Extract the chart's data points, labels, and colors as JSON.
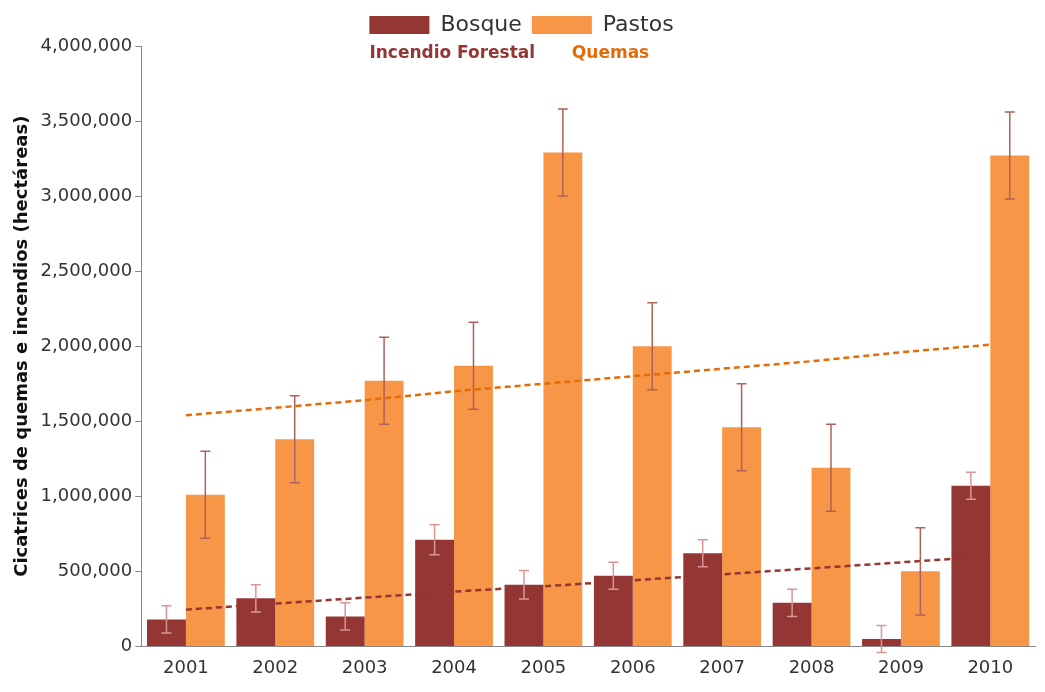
{
  "chart_data": {
    "type": "bar",
    "ylabel": "Cicatrices de quemas e incendios (hectáreas)",
    "categories": [
      "2001",
      "2002",
      "2003",
      "2004",
      "2005",
      "2006",
      "2007",
      "2008",
      "2009",
      "2010"
    ],
    "series": [
      {
        "name": "Bosque",
        "color": "#943634",
        "values": [
          180000,
          320000,
          200000,
          710000,
          410000,
          470000,
          620000,
          290000,
          50000,
          1070000
        ],
        "errors": [
          90000,
          90000,
          90000,
          100000,
          95000,
          90000,
          90000,
          90000,
          90000,
          90000
        ]
      },
      {
        "name": "Pastos",
        "color": "#f79646",
        "values": [
          1010000,
          1380000,
          1770000,
          1870000,
          3290000,
          2000000,
          1460000,
          1190000,
          500000,
          3270000
        ],
        "errors": [
          290000,
          290000,
          290000,
          290000,
          290000,
          290000,
          290000,
          290000,
          290000,
          290000
        ]
      },
      {
        "type": "line",
        "color": "#e36c09",
        "values": [
          1540000,
          1590000,
          1640000,
          1700000,
          1750000,
          1800000,
          1850000,
          1900000,
          1960000,
          2010000
        ],
        "line_style": "dashed",
        "marker": "none"
      },
      {
        "type": "line",
        "color": "#943634",
        "values": [
          245000,
          285000,
          325000,
          365000,
          400000,
          440000,
          480000,
          520000,
          560000,
          600000
        ],
        "line_style": "dashed",
        "marker": "none"
      }
    ],
    "annotations": [
      "Incendio Forestal",
      "Quemas"
    ],
    "ylim": [
      0,
      4000000
    ],
    "yticks": [
      {
        "value": 0,
        "label": "0"
      },
      {
        "value": 500000,
        "label": "500,000"
      },
      {
        "value": 1000000,
        "label": "1,000,000"
      },
      {
        "value": 1500000,
        "label": "1,500,000"
      },
      {
        "value": 2000000,
        "label": "2,000,000"
      },
      {
        "value": 2500000,
        "label": "2,500,000"
      },
      {
        "value": 3000000,
        "label": "3,000,000"
      },
      {
        "value": 3500000,
        "label": "3,500,000"
      },
      {
        "value": 4000000,
        "label": "4,000,000"
      }
    ],
    "grid": false,
    "legend": "top"
  }
}
